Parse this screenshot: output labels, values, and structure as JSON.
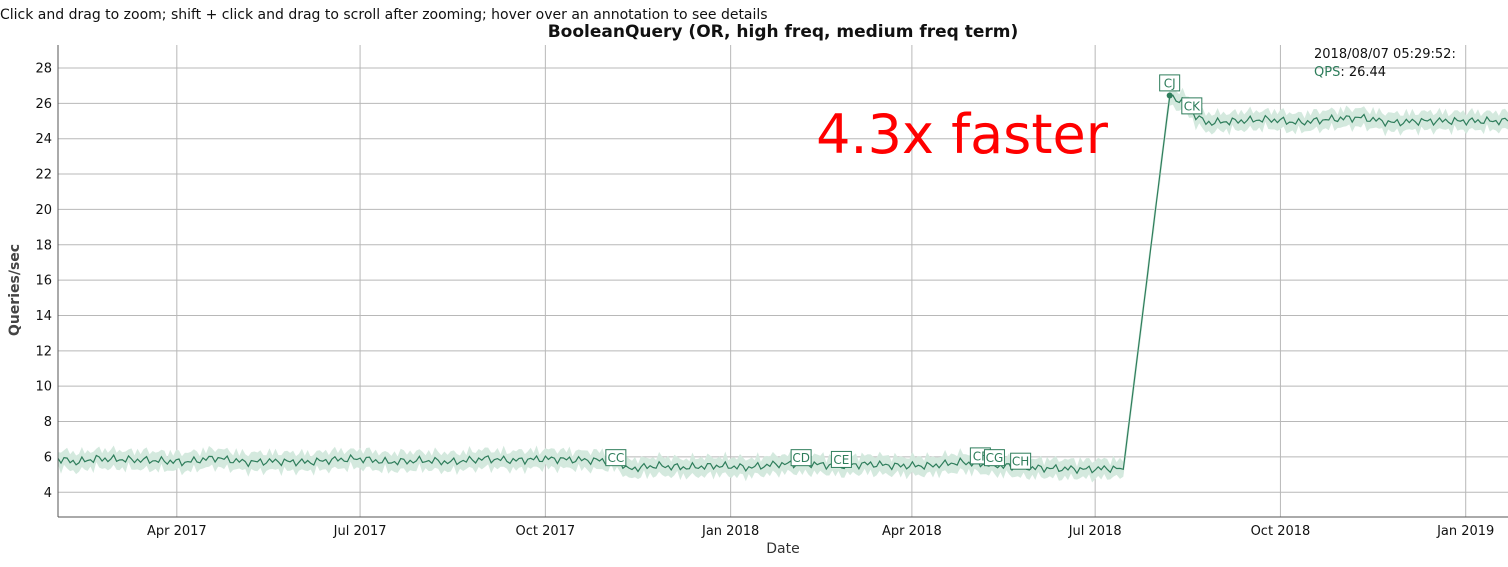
{
  "hint": "Click and drag to zoom; shift + click and drag to scroll after zooming; hover over an annotation to see details",
  "legend": {
    "timestamp": "2018/08/07 05:29:52:",
    "series_name": "QPS",
    "series_value": "26.44"
  },
  "callout": {
    "text": "4.3x faster",
    "color": "#ff0000"
  },
  "colors": {
    "line": "#2e7d5b",
    "band": "#d4e9de"
  },
  "chart_data": {
    "type": "line",
    "title": "BooleanQuery (OR, high freq, medium freq term)",
    "xlabel": "Date",
    "ylabel": "Queries/sec",
    "xlim": [
      "2017-02-01",
      "2019-01-22"
    ],
    "ylim": [
      2.6,
      29.3
    ],
    "grid": true,
    "x_ticks": [
      {
        "date": "2017-04-01",
        "label": "Apr 2017"
      },
      {
        "date": "2017-07-01",
        "label": "Jul 2017"
      },
      {
        "date": "2017-10-01",
        "label": "Oct 2017"
      },
      {
        "date": "2018-01-01",
        "label": "Jan 2018"
      },
      {
        "date": "2018-04-01",
        "label": "Apr 2018"
      },
      {
        "date": "2018-07-01",
        "label": "Jul 2018"
      },
      {
        "date": "2018-10-01",
        "label": "Oct 2018"
      },
      {
        "date": "2019-01-01",
        "label": "Jan 2019"
      }
    ],
    "y_ticks": [
      4,
      6,
      8,
      10,
      12,
      14,
      16,
      18,
      20,
      22,
      24,
      26,
      28
    ],
    "series": [
      {
        "name": "QPS",
        "points": [
          {
            "x": "2017-02-01",
            "y": 5.9
          },
          {
            "x": "2017-02-10",
            "y": 5.7
          },
          {
            "x": "2017-02-20",
            "y": 5.9
          },
          {
            "x": "2017-03-05",
            "y": 5.85
          },
          {
            "x": "2017-03-20",
            "y": 5.8
          },
          {
            "x": "2017-04-05",
            "y": 5.7
          },
          {
            "x": "2017-04-20",
            "y": 5.95
          },
          {
            "x": "2017-05-05",
            "y": 5.7
          },
          {
            "x": "2017-05-20",
            "y": 5.75
          },
          {
            "x": "2017-06-05",
            "y": 5.7
          },
          {
            "x": "2017-06-20",
            "y": 5.85
          },
          {
            "x": "2017-07-01",
            "y": 5.9
          },
          {
            "x": "2017-07-15",
            "y": 5.7
          },
          {
            "x": "2017-08-01",
            "y": 5.8
          },
          {
            "x": "2017-08-15",
            "y": 5.7
          },
          {
            "x": "2017-09-01",
            "y": 5.9
          },
          {
            "x": "2017-09-15",
            "y": 5.8
          },
          {
            "x": "2017-10-01",
            "y": 5.9
          },
          {
            "x": "2017-10-25",
            "y": 5.8
          },
          {
            "x": "2017-11-07",
            "y": 5.8
          },
          {
            "x": "2017-11-10",
            "y": 5.3
          },
          {
            "x": "2017-11-25",
            "y": 5.5
          },
          {
            "x": "2017-12-10",
            "y": 5.4
          },
          {
            "x": "2017-12-25",
            "y": 5.5
          },
          {
            "x": "2018-01-10",
            "y": 5.4
          },
          {
            "x": "2018-01-25",
            "y": 5.6
          },
          {
            "x": "2018-02-10",
            "y": 5.6
          },
          {
            "x": "2018-02-25",
            "y": 5.5
          },
          {
            "x": "2018-03-10",
            "y": 5.6
          },
          {
            "x": "2018-03-25",
            "y": 5.5
          },
          {
            "x": "2018-04-10",
            "y": 5.5
          },
          {
            "x": "2018-04-25",
            "y": 5.7
          },
          {
            "x": "2018-05-05",
            "y": 5.6
          },
          {
            "x": "2018-05-15",
            "y": 5.5
          },
          {
            "x": "2018-05-25",
            "y": 5.4
          },
          {
            "x": "2018-06-10",
            "y": 5.35
          },
          {
            "x": "2018-06-25",
            "y": 5.3
          },
          {
            "x": "2018-07-10",
            "y": 5.35
          },
          {
            "x": "2018-07-15",
            "y": 5.3
          },
          {
            "x": "2018-08-07",
            "y": 26.44
          },
          {
            "x": "2018-08-15",
            "y": 26.0
          },
          {
            "x": "2018-08-20",
            "y": 25.3
          },
          {
            "x": "2018-08-25",
            "y": 24.9
          },
          {
            "x": "2018-09-10",
            "y": 25.0
          },
          {
            "x": "2018-09-25",
            "y": 25.1
          },
          {
            "x": "2018-10-10",
            "y": 24.9
          },
          {
            "x": "2018-10-25",
            "y": 25.1
          },
          {
            "x": "2018-11-10",
            "y": 25.2
          },
          {
            "x": "2018-11-25",
            "y": 24.9
          },
          {
            "x": "2018-12-10",
            "y": 25.0
          },
          {
            "x": "2018-12-25",
            "y": 25.0
          },
          {
            "x": "2019-01-10",
            "y": 25.0
          },
          {
            "x": "2019-01-22",
            "y": 25.0
          }
        ]
      }
    ],
    "annotations": [
      {
        "label": "CC",
        "x": "2017-11-05",
        "y": 5.9
      },
      {
        "label": "CD",
        "x": "2018-02-05",
        "y": 5.9
      },
      {
        "label": "CE",
        "x": "2018-02-25",
        "y": 5.8
      },
      {
        "label": "CF",
        "x": "2018-05-05",
        "y": 6.0
      },
      {
        "label": "CG",
        "x": "2018-05-12",
        "y": 5.9
      },
      {
        "label": "CH",
        "x": "2018-05-25",
        "y": 5.7
      },
      {
        "label": "CJ",
        "x": "2018-08-07",
        "y": 27.1
      },
      {
        "label": "CK",
        "x": "2018-08-18",
        "y": 25.8
      }
    ]
  }
}
